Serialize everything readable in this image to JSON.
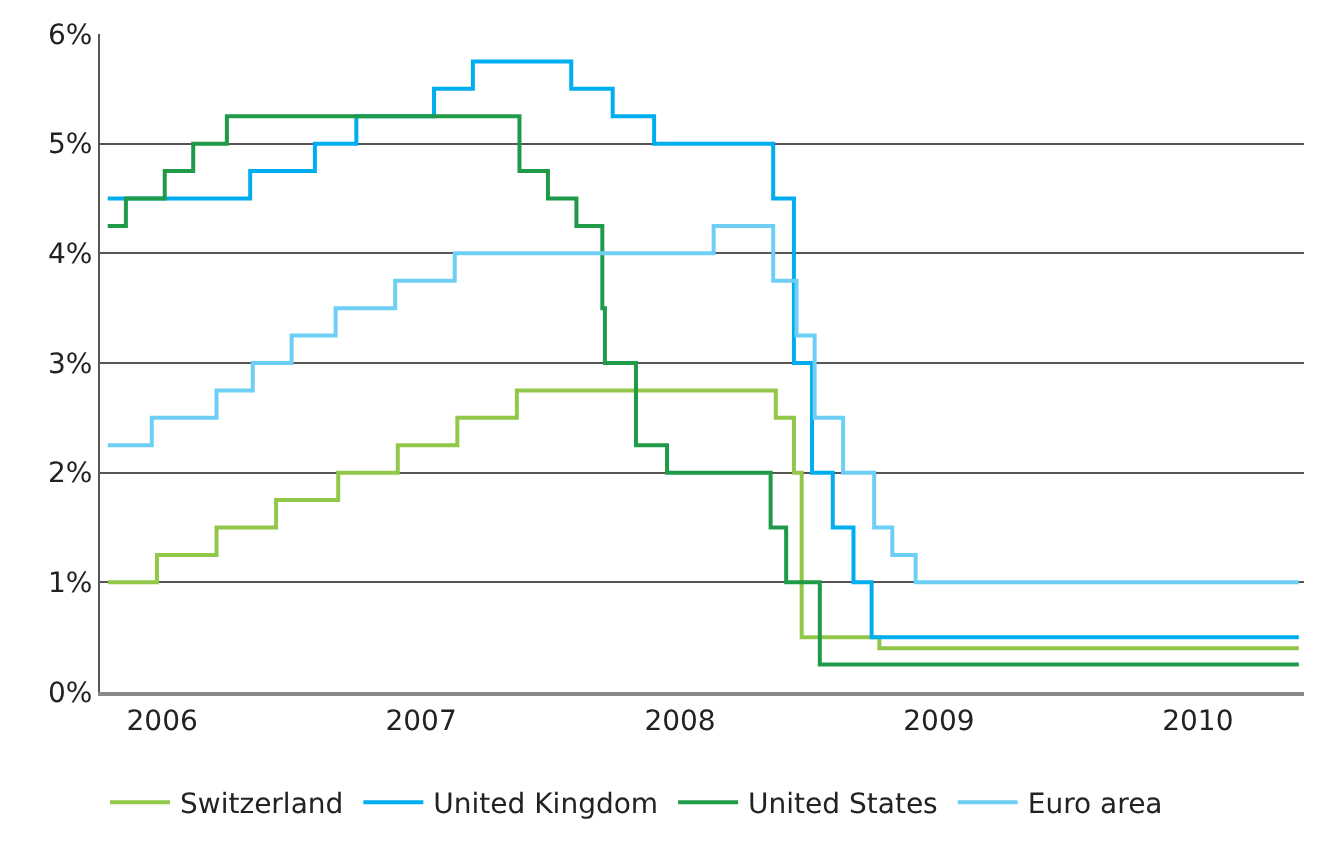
{
  "chart_data": {
    "type": "step",
    "series": [
      {
        "name": "Switzerland",
        "color": "#92c84a",
        "x": [
          2005.79,
          2005.98,
          2006.21,
          2006.44,
          2006.68,
          2006.91,
          2007.14,
          2007.37,
          2008.37,
          2008.44,
          2008.47,
          2008.77,
          2010.39
        ],
        "values": [
          1.0,
          1.25,
          1.5,
          1.75,
          2.0,
          2.25,
          2.5,
          2.75,
          2.5,
          2.0,
          0.5,
          0.4,
          0.4
        ]
      },
      {
        "name": "United Kingdom",
        "color": "#00aeef",
        "x": [
          2005.79,
          2006.34,
          2006.59,
          2006.75,
          2007.05,
          2007.2,
          2007.58,
          2007.74,
          2007.9,
          2008.36,
          2008.44,
          2008.51,
          2008.59,
          2008.67,
          2008.74,
          2010.39
        ],
        "values": [
          4.5,
          4.75,
          5.0,
          5.25,
          5.5,
          5.75,
          5.5,
          5.25,
          5.0,
          4.5,
          3.0,
          2.0,
          1.5,
          1.0,
          0.5,
          0.5
        ]
      },
      {
        "name": "United States",
        "color": "#1f9a48",
        "x": [
          2005.79,
          2005.86,
          2006.01,
          2006.12,
          2006.25,
          2007.38,
          2007.49,
          2007.6,
          2007.7,
          2007.71,
          2007.83,
          2007.95,
          2008.35,
          2008.41,
          2008.54,
          2010.39
        ],
        "values": [
          4.25,
          4.5,
          4.75,
          5.0,
          5.25,
          4.75,
          4.5,
          4.25,
          3.5,
          3.0,
          2.25,
          2.0,
          1.5,
          1.0,
          0.25,
          0.25
        ]
      },
      {
        "name": "Euro area",
        "color": "#6dcff6",
        "x": [
          2005.79,
          2005.96,
          2006.21,
          2006.35,
          2006.5,
          2006.67,
          2006.9,
          2007.13,
          2008.13,
          2008.36,
          2008.45,
          2008.52,
          2008.63,
          2008.75,
          2008.82,
          2008.91,
          2010.39
        ],
        "values": [
          2.25,
          2.5,
          2.75,
          3.0,
          3.25,
          3.5,
          3.75,
          4.0,
          4.25,
          3.75,
          3.25,
          2.5,
          2.0,
          1.5,
          1.25,
          1.0,
          1.0
        ]
      }
    ],
    "xlim": [
      2005.76,
      2010.41
    ],
    "xticks": [
      2006,
      2007,
      2008,
      2009,
      2010
    ],
    "ylim": [
      0,
      6
    ],
    "yticks": [
      {
        "value": 0,
        "label": "0%"
      },
      {
        "value": 1,
        "label": "1%"
      },
      {
        "value": 2,
        "label": "2%"
      },
      {
        "value": 3,
        "label": "3%"
      },
      {
        "value": 4,
        "label": "4%"
      },
      {
        "value": 5,
        "label": "5%"
      },
      {
        "value": 6,
        "label": "6%"
      }
    ],
    "grid": "y",
    "legend": "bottom",
    "marker": "none",
    "line_style": "solid"
  }
}
